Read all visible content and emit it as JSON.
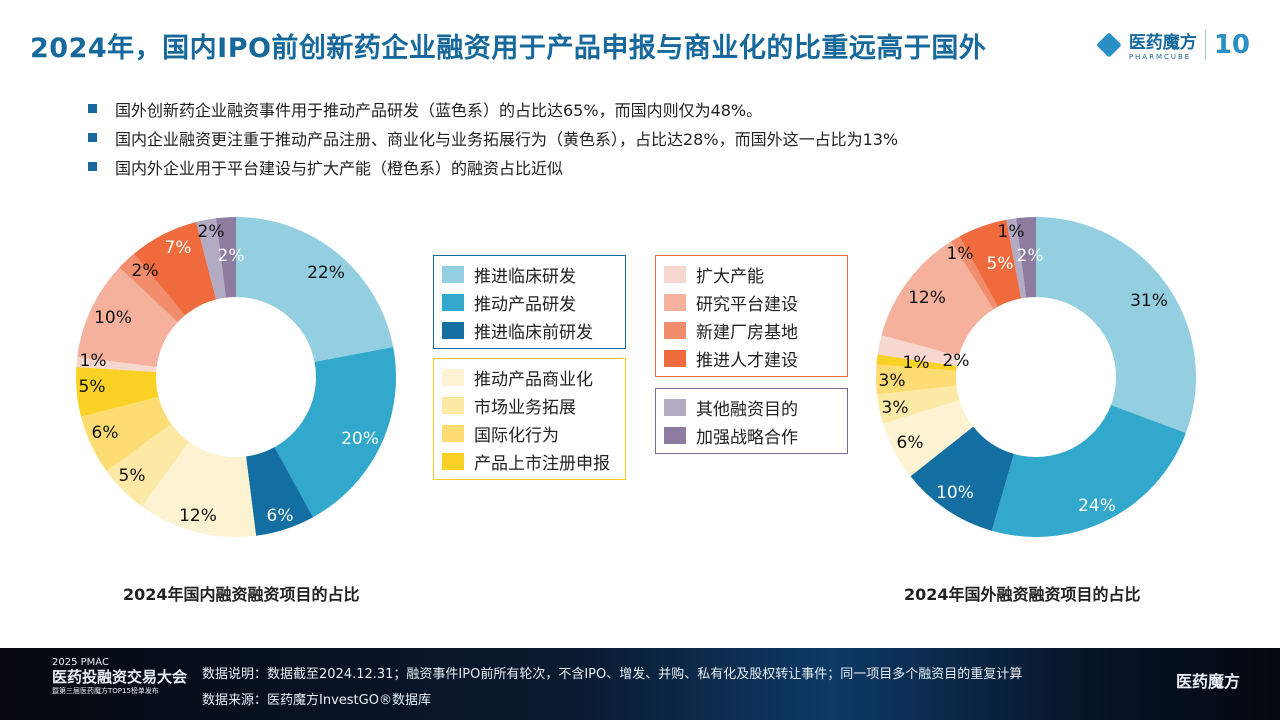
{
  "header": {
    "title": "2024年，国内IPO前创新药企业融资用于产品申报与商业化的比重远高于国外",
    "logo_name": "医药魔方",
    "logo_sub": "PHARMCUBE",
    "logo_badge": "10"
  },
  "bullets": [
    "国外创新药企业融资事件用于推动产品研发（蓝色系）的占比达65%，而国内则仅为48%。",
    "国内企业融资更注重于推动产品注册、商业化与业务拓展行为（黄色系），占比达28%，而国外这一占比为13%",
    "国内外企业用于平台建设与扩大产能（橙色系）的融资占比近似"
  ],
  "legend_groups": [
    {
      "border": "#17699b",
      "items": [
        {
          "label": "推进临床研发",
          "color": "#93cfe1"
        },
        {
          "label": "推动产品研发",
          "color": "#32a8cc"
        },
        {
          "label": "推进临床前研发",
          "color": "#136fa1"
        }
      ]
    },
    {
      "border": "#f2cc2e",
      "items": [
        {
          "label": "推动产品商业化",
          "color": "#fdf3d3"
        },
        {
          "label": "市场业务拓展",
          "color": "#fde9a6"
        },
        {
          "label": "国际化行为",
          "color": "#fddd73"
        },
        {
          "label": "产品上市注册申报",
          "color": "#fad225"
        }
      ]
    },
    {
      "border": "#e8703e",
      "items": [
        {
          "label": "扩大产能",
          "color": "#f7d8d0"
        },
        {
          "label": "研究平台建设",
          "color": "#f5b19c"
        },
        {
          "label": "新建厂房基地",
          "color": "#f18d6d"
        },
        {
          "label": "推进人才建设",
          "color": "#ef6b3d"
        }
      ]
    },
    {
      "border": "#7e6a91",
      "items": [
        {
          "label": "其他融资目的",
          "color": "#b3aac3"
        },
        {
          "label": "加强战略合作",
          "color": "#8e7ba0"
        }
      ]
    }
  ],
  "chart_data": [
    {
      "type": "pie",
      "title": "2024年国内融资融资项目的占比",
      "categories": [
        "推进临床研发",
        "推动产品研发",
        "推进临床前研发",
        "推动产品商业化",
        "市场业务拓展",
        "国际化行为",
        "产品上市注册申报",
        "扩大产能",
        "研究平台建设",
        "新建厂房基地",
        "推进人才建设",
        "其他融资目的",
        "加强战略合作"
      ],
      "values": [
        22,
        20,
        6,
        12,
        5,
        6,
        5,
        1,
        10,
        2,
        7,
        2,
        2
      ],
      "unit": "%"
    },
    {
      "type": "pie",
      "title": "2024年国外融资融资项目的占比",
      "categories": [
        "推进临床研发",
        "推动产品研发",
        "推进临床前研发",
        "推动产品商业化",
        "市场业务拓展",
        "国际化行为",
        "产品上市注册申报",
        "扩大产能",
        "研究平台建设",
        "新建厂房基地",
        "推进人才建设",
        "其他融资目的",
        "加强战略合作"
      ],
      "values": [
        31,
        24,
        10,
        6,
        3,
        3,
        1,
        2,
        12,
        1,
        5,
        1,
        2
      ],
      "unit": "%"
    }
  ],
  "footer": {
    "brand_year": "2025 PMAC",
    "brand_name": "医药投融资交易大会",
    "brand_sub": "暨第三届医药魔方TOP15榜单发布",
    "note1": "数据说明：数据截至2024.12.31；融资事件IPO前所有轮次，不含IPO、增发、并购、私有化及股权转让事件；同一项目多个融资目的重复计算",
    "note2": "数据来源：医药魔方InvestGO®数据库",
    "logo": "医药魔方"
  }
}
